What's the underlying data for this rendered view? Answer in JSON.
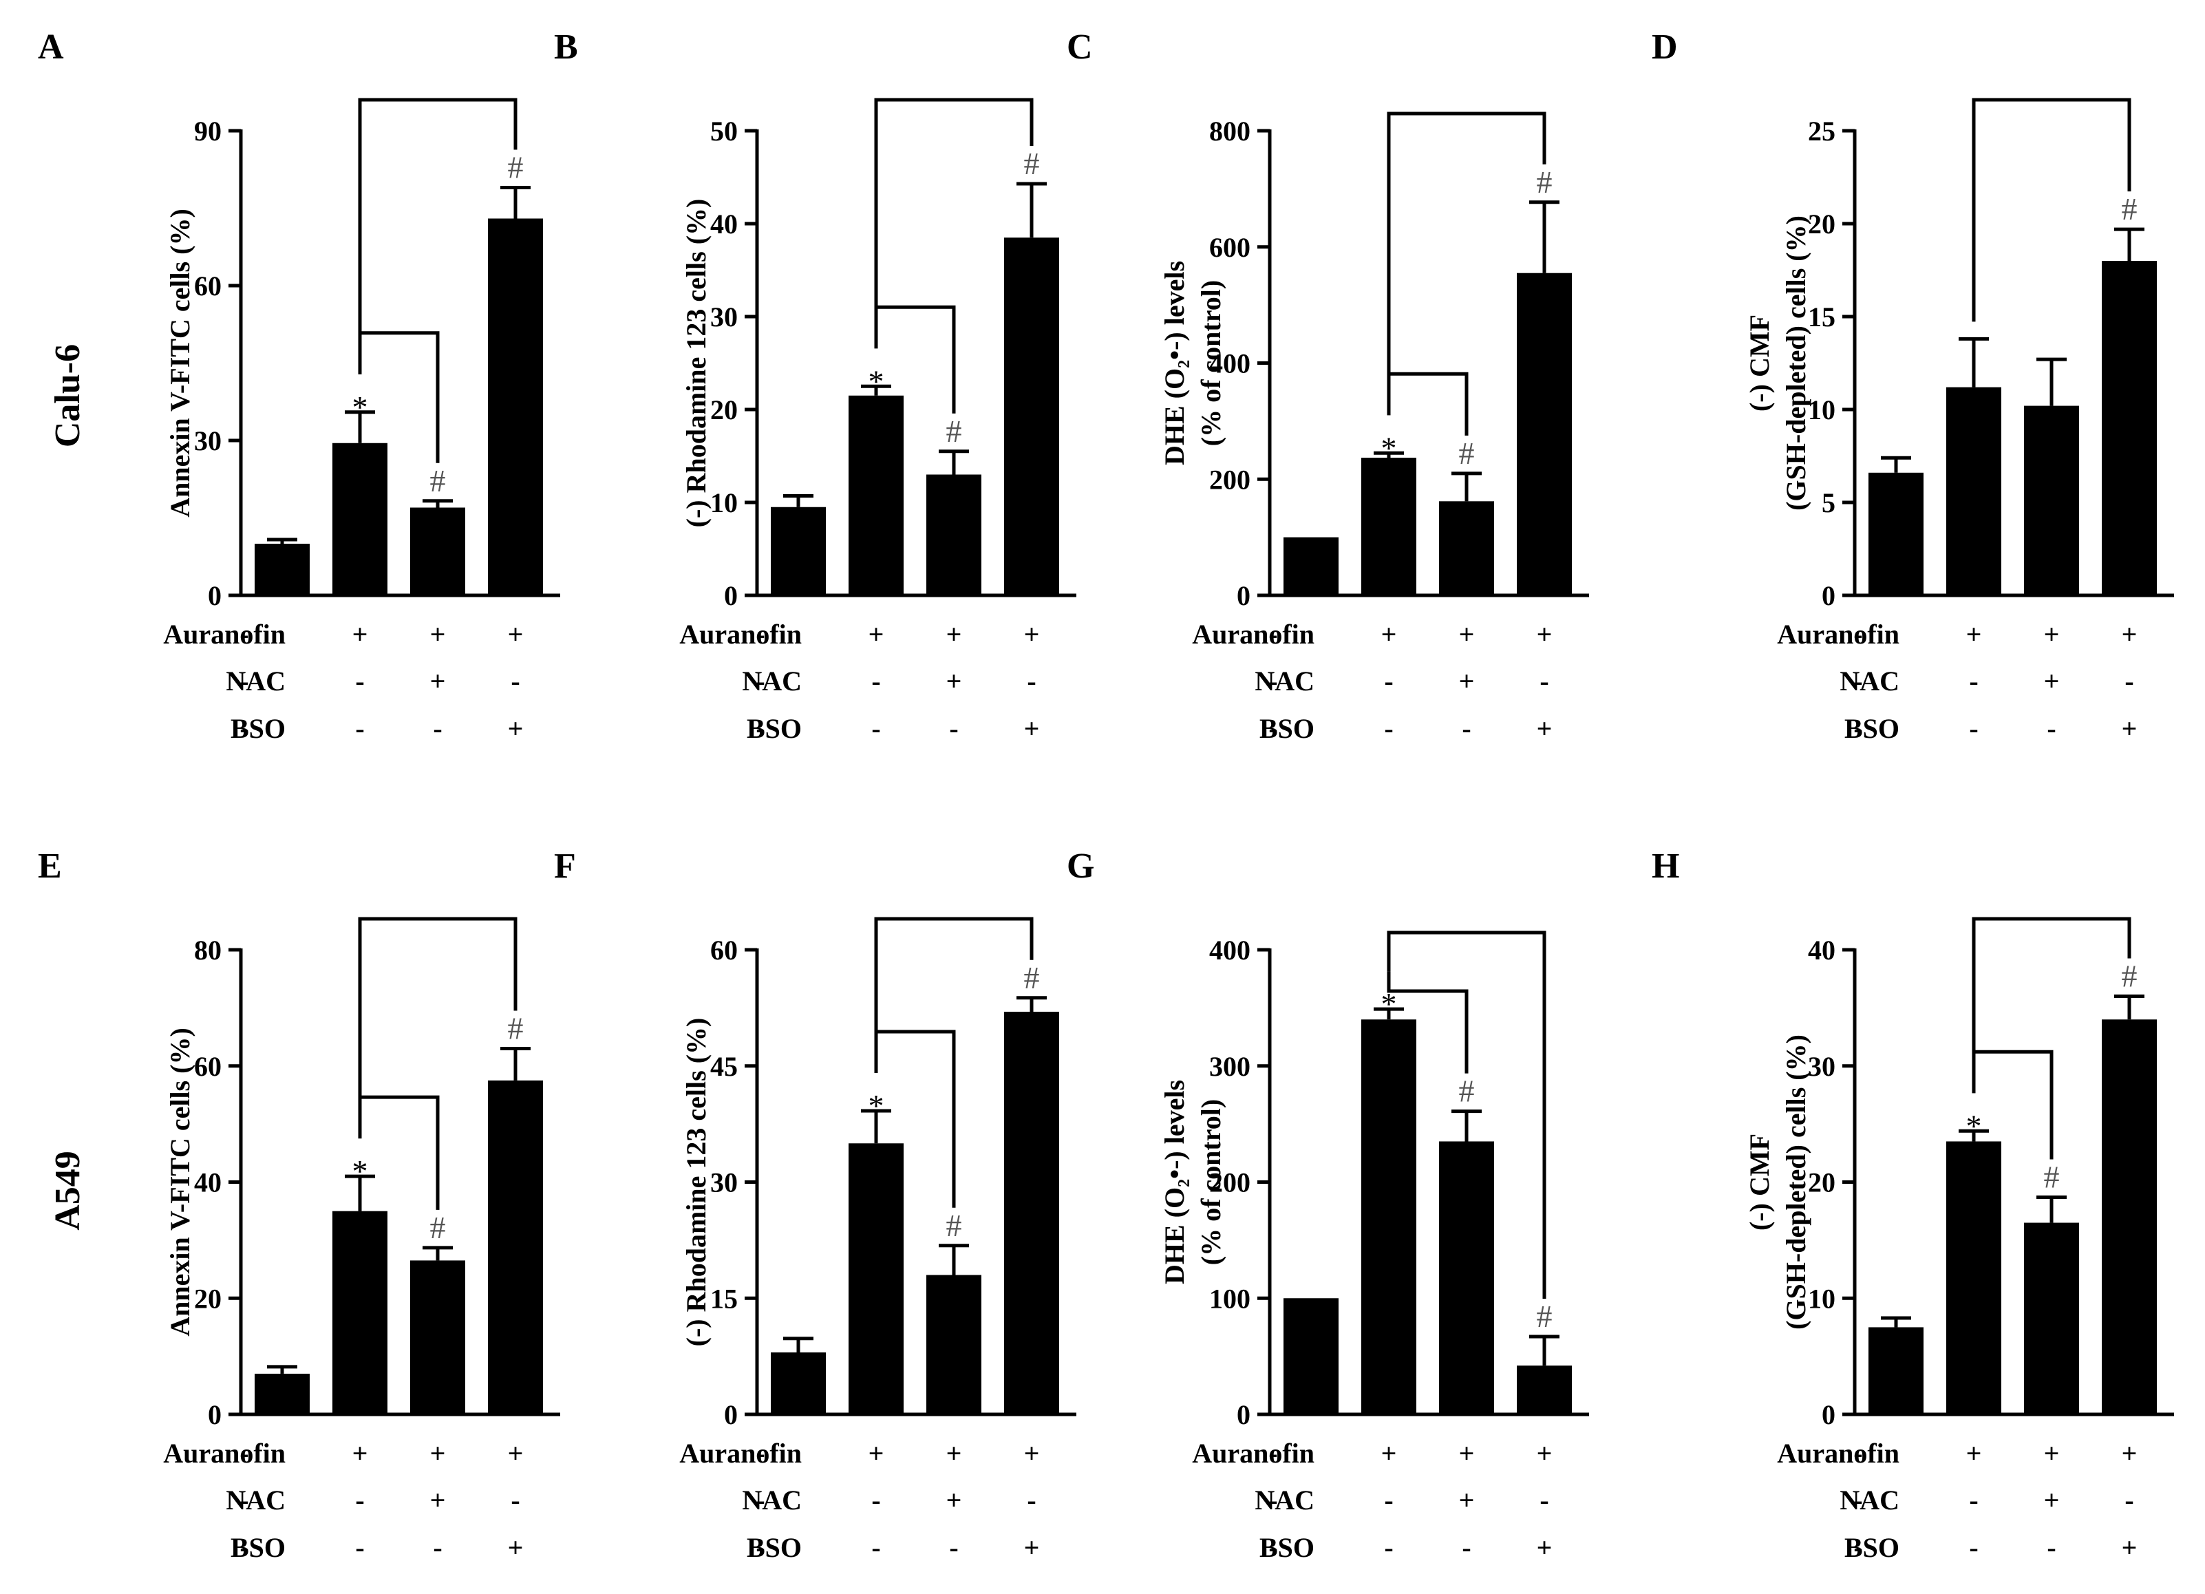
{
  "cell_lines": [
    "Calu-6",
    "A549"
  ],
  "treatment_rows": [
    "Auranofin",
    "NAC",
    "BSO"
  ],
  "treatment_signs": [
    [
      "-",
      "+",
      "+",
      "+"
    ],
    [
      "-",
      "-",
      "+",
      "-"
    ],
    [
      "-",
      "-",
      "-",
      "+"
    ]
  ],
  "chart_data": [
    {
      "id": "A",
      "type": "bar",
      "cell_line": "Calu-6",
      "ylabel": [
        "Annexin V-FITC cells (%)"
      ],
      "ylim": [
        0,
        90
      ],
      "yticks": [
        0,
        30,
        60,
        90
      ],
      "values": [
        10,
        29.5,
        17,
        73
      ],
      "errors": [
        0.8,
        6,
        1.3,
        6
      ],
      "marks": [
        "",
        "*",
        "#",
        "#"
      ],
      "brackets": [
        [
          1,
          3
        ],
        [
          1,
          2
        ]
      ]
    },
    {
      "id": "B",
      "type": "bar",
      "cell_line": "Calu-6",
      "ylabel": [
        "(-) Rhodamine 123 cells (%)"
      ],
      "ylim": [
        0,
        50
      ],
      "yticks": [
        0,
        10,
        20,
        30,
        40,
        50
      ],
      "values": [
        9.5,
        21.5,
        13,
        38.5
      ],
      "errors": [
        1.2,
        1,
        2.5,
        5.8
      ],
      "marks": [
        "",
        "*",
        "#",
        "#"
      ],
      "brackets": [
        [
          1,
          3
        ],
        [
          1,
          2
        ]
      ]
    },
    {
      "id": "C",
      "type": "bar",
      "cell_line": "Calu-6",
      "ylabel": [
        "DHE (O₂•-) levels",
        "(% of control)"
      ],
      "ylim": [
        0,
        800
      ],
      "yticks": [
        0,
        200,
        400,
        600,
        800
      ],
      "values": [
        100,
        237,
        162,
        555
      ],
      "errors": [
        0,
        8,
        48,
        122
      ],
      "marks": [
        "",
        "*",
        "#",
        "#"
      ],
      "brackets": [
        [
          1,
          3
        ],
        [
          1,
          2
        ]
      ]
    },
    {
      "id": "D",
      "type": "bar",
      "cell_line": "Calu-6",
      "ylabel": [
        "(-) CMF",
        "(GSH-depleted) cells (%)"
      ],
      "ylim": [
        0,
        25
      ],
      "yticks": [
        0,
        5,
        10,
        15,
        20,
        25
      ],
      "values": [
        6.6,
        11.2,
        10.2,
        18
      ],
      "errors": [
        0.8,
        2.6,
        2.5,
        1.7
      ],
      "marks": [
        "",
        "",
        "",
        "#"
      ],
      "brackets": [
        [
          1,
          3
        ]
      ]
    },
    {
      "id": "E",
      "type": "bar",
      "cell_line": "A549",
      "ylabel": [
        "Annexin V-FITC cells (%)"
      ],
      "ylim": [
        0,
        80
      ],
      "yticks": [
        0,
        20,
        40,
        60,
        80
      ],
      "values": [
        7,
        35,
        26.5,
        57.5
      ],
      "errors": [
        1.2,
        6,
        2.2,
        5.5
      ],
      "marks": [
        "",
        "*",
        "#",
        "#"
      ],
      "brackets": [
        [
          1,
          3
        ],
        [
          1,
          2
        ]
      ]
    },
    {
      "id": "F",
      "type": "bar",
      "cell_line": "A549",
      "ylabel": [
        "(-) Rhodamine 123 cells (%)"
      ],
      "ylim": [
        0,
        60
      ],
      "yticks": [
        0,
        15,
        30,
        45,
        60
      ],
      "values": [
        8,
        35,
        18,
        52
      ],
      "errors": [
        1.8,
        4.2,
        3.8,
        1.8
      ],
      "marks": [
        "",
        "*",
        "#",
        "#"
      ],
      "brackets": [
        [
          1,
          3
        ],
        [
          1,
          2
        ]
      ]
    },
    {
      "id": "G",
      "type": "bar",
      "cell_line": "A549",
      "ylabel": [
        "DHE (O₂•-) levels",
        "(% of control)"
      ],
      "ylim": [
        0,
        400
      ],
      "yticks": [
        0,
        100,
        200,
        300,
        400
      ],
      "values": [
        100,
        340,
        235,
        42
      ],
      "errors": [
        0,
        9,
        26,
        25
      ],
      "marks": [
        "",
        "*",
        "#",
        "#"
      ],
      "brackets": [
        [
          1,
          3
        ],
        [
          1,
          2
        ]
      ]
    },
    {
      "id": "H",
      "type": "bar",
      "cell_line": "A549",
      "ylabel": [
        "(-) CMF",
        "(GSH-depleted) cells (%)"
      ],
      "ylim": [
        0,
        40
      ],
      "yticks": [
        0,
        10,
        20,
        30,
        40
      ],
      "values": [
        7.5,
        23.5,
        16.5,
        34
      ],
      "errors": [
        0.8,
        0.9,
        2.2,
        2
      ],
      "marks": [
        "",
        "*",
        "#",
        "#"
      ],
      "brackets": [
        [
          1,
          3
        ],
        [
          1,
          2
        ]
      ]
    }
  ]
}
